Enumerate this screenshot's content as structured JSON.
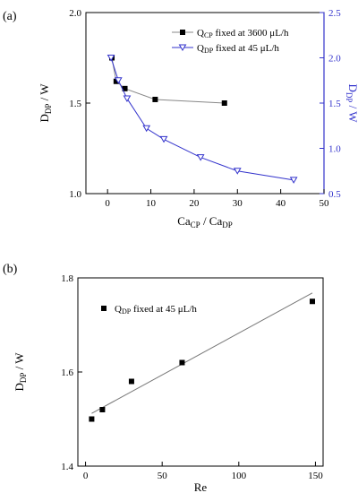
{
  "panels": [
    {
      "label": "(a)"
    },
    {
      "label": "(b)"
    }
  ],
  "chart_data": [
    {
      "type": "line",
      "panel": "(a)",
      "xlabel": {
        "base": "Ca",
        "sub1": "CP",
        "mid": " / Ca",
        "sub2": "DP"
      },
      "ylabel_left": {
        "base": "D",
        "sub": "DP",
        "rest": " / W"
      },
      "ylabel_right": {
        "base": "D",
        "sub": "DP",
        "rest": " / W"
      },
      "xlim": [
        -5,
        50
      ],
      "ylim_left": [
        1.0,
        2.0
      ],
      "ylim_right": [
        0.5,
        2.5
      ],
      "xticks": [
        0,
        10,
        20,
        30,
        40,
        50
      ],
      "yticks_left": [
        "1.0",
        "1.5",
        "2.0"
      ],
      "yticks_right": [
        "0.5",
        "1.0",
        "1.5",
        "2.0",
        "2.5"
      ],
      "right_axis_color": "#3333cc",
      "grid": false,
      "legend_position": "top-right",
      "series": [
        {
          "name_base": "Q",
          "name_sub": "CP",
          "name_rest": " fixed at 3600 μL/h",
          "axis": "left",
          "marker": "square-filled",
          "line_color": "#888888",
          "marker_color": "#000000",
          "x": [
            1.0,
            2.0,
            4.0,
            11.0,
            27.0
          ],
          "y": [
            1.75,
            1.62,
            1.58,
            1.52,
            1.5
          ]
        },
        {
          "name_base": "Q",
          "name_sub": "DP",
          "name_rest": " fixed at 45 μL/h",
          "axis": "right",
          "marker": "triangle-down-open",
          "line_color": "#3333cc",
          "marker_color": "#3333cc",
          "x": [
            0.8,
            2.5,
            4.5,
            9.0,
            13.0,
            21.5,
            30.0,
            43.0
          ],
          "y": [
            2.0,
            1.75,
            1.55,
            1.22,
            1.1,
            0.9,
            0.75,
            0.65
          ]
        }
      ]
    },
    {
      "type": "scatter",
      "panel": "(b)",
      "xlabel": "Re",
      "ylabel": {
        "base": "D",
        "sub": "DP",
        "rest": " / W"
      },
      "xlim": [
        -5,
        155
      ],
      "ylim": [
        1.4,
        1.8
      ],
      "xticks": [
        0,
        50,
        100,
        150
      ],
      "yticks": [
        "1.4",
        "1.6",
        "1.8"
      ],
      "grid": false,
      "legend_position": "top-left",
      "series": [
        {
          "name_base": "Q",
          "name_sub": "DP",
          "name_rest": " fixed at 45 μL/h",
          "marker": "square-filled",
          "marker_color": "#000000",
          "x": [
            4.0,
            11.0,
            30.0,
            63.0,
            148.0
          ],
          "y": [
            1.5,
            1.52,
            1.58,
            1.62,
            1.75
          ]
        }
      ],
      "fit_line": {
        "x": [
          4.0,
          148.0
        ],
        "y": [
          1.512,
          1.768
        ],
        "color": "#777777"
      }
    }
  ]
}
